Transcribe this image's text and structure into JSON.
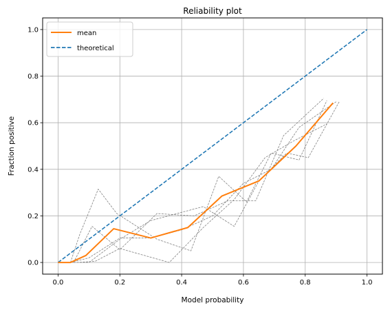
{
  "chart_data": {
    "type": "line",
    "title": "Reliability plot",
    "xlabel": "Model probability",
    "ylabel": "Fraction positive",
    "xlim": [
      -0.05,
      1.05
    ],
    "ylim": [
      -0.05,
      1.05
    ],
    "xticks": [
      0.0,
      0.2,
      0.4,
      0.6,
      0.8,
      1.0
    ],
    "xtick_labels": [
      "0.0",
      "0.2",
      "0.4",
      "0.6",
      "0.8",
      "1.0"
    ],
    "yticks": [
      0.0,
      0.2,
      0.4,
      0.6,
      0.8,
      1.0
    ],
    "ytick_labels": [
      "0.0",
      "0.2",
      "0.4",
      "0.6",
      "0.8",
      "1.0"
    ],
    "grid": true,
    "legend_position": "top-left",
    "series": [
      {
        "name": "mean",
        "color": "#ff7f0e",
        "style": "solid",
        "legend": true,
        "x": [
          0.0,
          0.04,
          0.09,
          0.18,
          0.3,
          0.42,
          0.53,
          0.65,
          0.77,
          0.89
        ],
        "y": [
          0.0,
          0.0,
          0.03,
          0.145,
          0.105,
          0.15,
          0.285,
          0.35,
          0.5,
          0.685
        ]
      },
      {
        "name": "theoretical",
        "color": "#1f77b4",
        "style": "dashed",
        "legend": true,
        "x": [
          0.0,
          1.0
        ],
        "y": [
          0.0,
          1.0
        ]
      },
      {
        "color": "#808080",
        "style": "dashed-thin",
        "legend": false,
        "x": [
          0.0,
          0.04,
          0.07,
          0.13,
          0.19,
          0.32,
          0.43,
          0.52,
          0.61,
          0.69,
          0.78,
          0.87
        ],
        "y": [
          0.0,
          0.0,
          0.12,
          0.315,
          0.21,
          0.1,
          0.05,
          0.37,
          0.26,
          0.47,
          0.44,
          0.695
        ]
      },
      {
        "color": "#808080",
        "style": "dashed-thin",
        "legend": false,
        "x": [
          0.0,
          0.05,
          0.11,
          0.2,
          0.32,
          0.44,
          0.55,
          0.64,
          0.73,
          0.86
        ],
        "y": [
          0.0,
          0.0,
          0.155,
          0.055,
          0.21,
          0.2,
          0.265,
          0.265,
          0.545,
          0.705
        ]
      },
      {
        "color": "#808080",
        "style": "dashed-thin",
        "legend": false,
        "x": [
          0.0,
          0.06,
          0.12,
          0.2,
          0.36,
          0.47,
          0.57,
          0.67,
          0.76,
          0.87
        ],
        "y": [
          0.0,
          0.0,
          0.005,
          0.06,
          0.0,
          0.15,
          0.27,
          0.45,
          0.52,
          0.595
        ]
      },
      {
        "color": "#808080",
        "style": "dashed-thin",
        "legend": false,
        "x": [
          0.0,
          0.05,
          0.1,
          0.2,
          0.3,
          0.47,
          0.57,
          0.65,
          0.74,
          0.81,
          0.91
        ],
        "y": [
          0.0,
          0.0,
          0.0,
          0.1,
          0.18,
          0.24,
          0.155,
          0.35,
          0.47,
          0.45,
          0.69
        ]
      },
      {
        "color": "#808080",
        "style": "dashed-thin",
        "legend": false,
        "x": [
          0.0,
          0.04,
          0.1,
          0.2,
          0.3,
          0.4,
          0.5,
          0.6,
          0.69,
          0.78,
          0.9
        ],
        "y": [
          0.0,
          0.0,
          0.02,
          0.105,
          0.105,
          0.14,
          0.2,
          0.34,
          0.4,
          0.58,
          0.69
        ]
      }
    ]
  }
}
